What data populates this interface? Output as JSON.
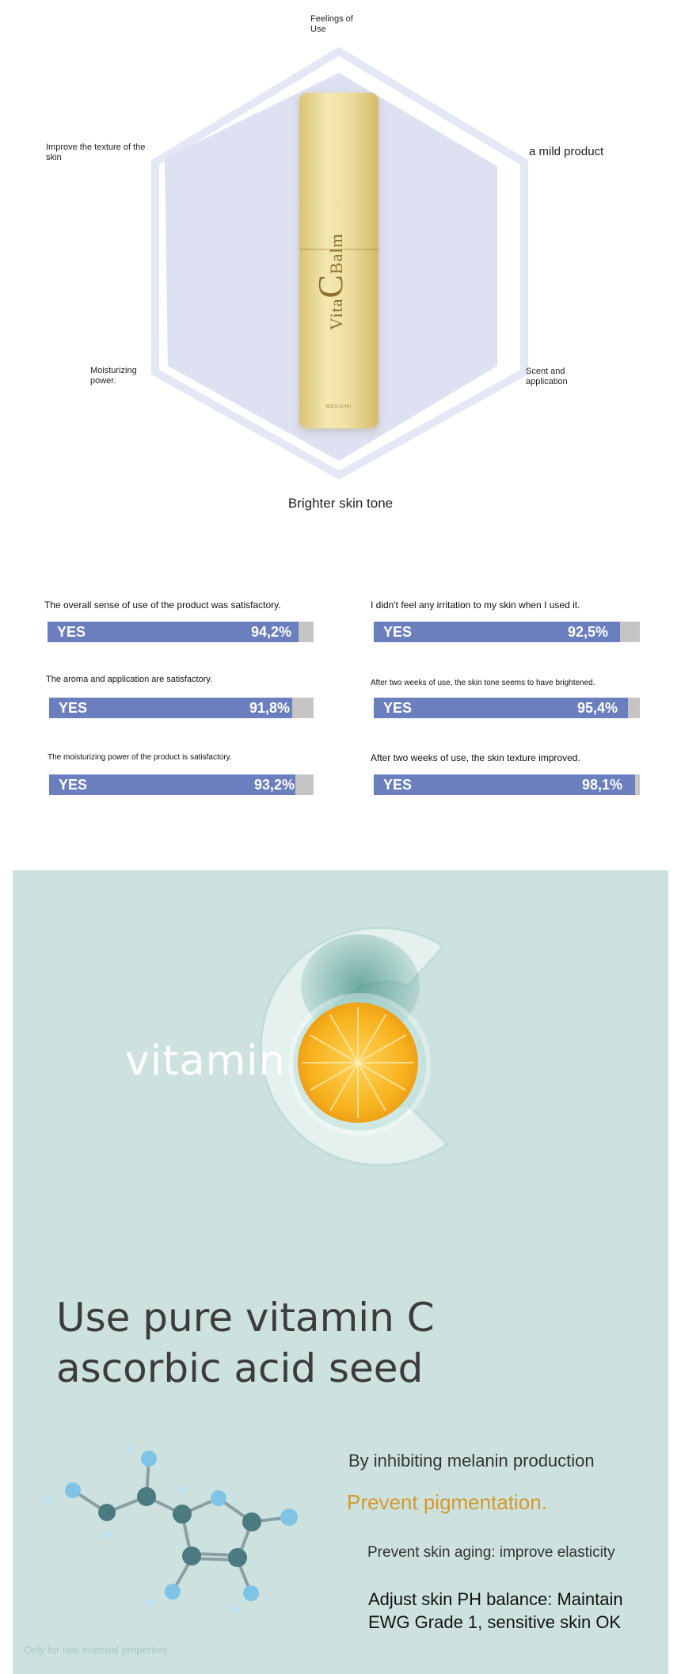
{
  "radar": {
    "labels": {
      "top": "Feelings of Use",
      "right": "a mild product",
      "lower_right": "Scent and application",
      "bottom": "Brighter skin tone",
      "lower_left": "Moisturizing power.",
      "upper_left": "Improve the texture of the skin"
    },
    "product": {
      "name_part1": "Vita",
      "name_c": "C",
      "name_part2": "Balm",
      "brand": "MEKIUNI"
    }
  },
  "survey": [
    {
      "question": "The overall sense of use of the product was satisfactory.",
      "answer": "YES",
      "percent_label": "94,2%",
      "value": 94.2
    },
    {
      "question": "I didn't feel any irritation to my skin when I used it.",
      "answer": "YES",
      "percent_label": "92,5%",
      "value": 92.5
    },
    {
      "question": "The aroma and application are satisfactory.",
      "answer": "YES",
      "percent_label": "91,8%",
      "value": 91.8
    },
    {
      "question": "After two weeks of use, the skin tone seems to have brightened.",
      "answer": "YES",
      "percent_label": "95,4%",
      "value": 95.4
    },
    {
      "question": "The moisturizing power of the product is satisfactory.",
      "answer": "YES",
      "percent_label": "93,2%",
      "value": 93.2
    },
    {
      "question": "After two weeks of use, the skin texture improved.",
      "answer": "YES",
      "percent_label": "98,1%",
      "value": 98.1
    }
  ],
  "vitamin": {
    "word": "vitamin",
    "headline_line1": "Use pure vitamin C",
    "headline_line2": "ascorbic acid seed",
    "benefit1": "By inhibiting melanin production",
    "benefit2": "Prevent pigmentation.",
    "benefit3": "Prevent skin aging: improve elasticity",
    "benefit4": "Adjust skin PH balance: Maintain EWG Grade 1, sensitive skin OK",
    "caption": "Only for raw material properties"
  },
  "colors": {
    "bar_fill": "#6b7fbf",
    "bar_track": "#c5c5c5",
    "hexagon_fill": "#dde1f1",
    "hexagon_outline": "#e6e9f4",
    "panel_bg": "#cde2df",
    "accent_orange": "#d39a2c"
  }
}
